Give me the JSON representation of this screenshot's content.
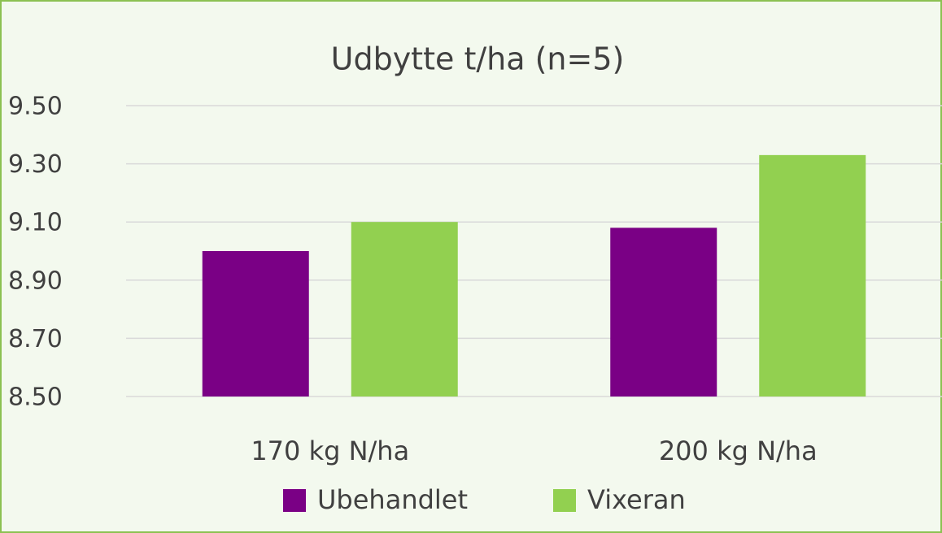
{
  "chart_data": {
    "type": "bar",
    "title": "Udbytte t/ha (n=5)",
    "categories": [
      "170 kg N/ha",
      "200 kg N/ha"
    ],
    "series": [
      {
        "name": "Ubehandlet",
        "color": "#7a0085",
        "values": [
          9.0,
          9.08
        ]
      },
      {
        "name": "Vixeran",
        "color": "#92d050",
        "values": [
          9.1,
          9.33
        ]
      }
    ],
    "ylim": [
      8.5,
      9.5
    ],
    "yticks": [
      {
        "value": 8.5,
        "label": "8.50"
      },
      {
        "value": 8.7,
        "label": "8.70"
      },
      {
        "value": 8.9,
        "label": "8.90"
      },
      {
        "value": 9.1,
        "label": "9.10"
      },
      {
        "value": 9.3,
        "label": "9.30"
      },
      {
        "value": 9.5,
        "label": "9.50"
      }
    ],
    "grid": true,
    "legend": "bottom"
  }
}
